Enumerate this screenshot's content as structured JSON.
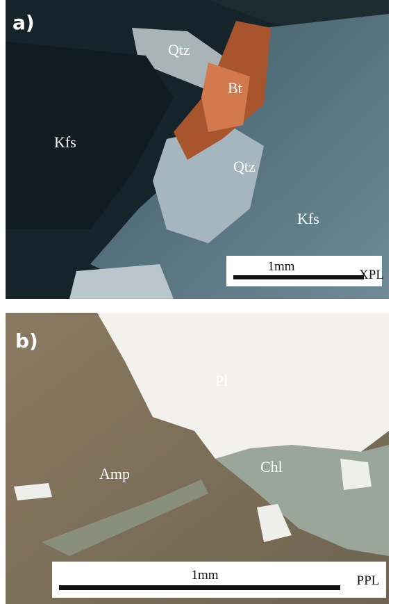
{
  "panels": [
    {
      "label": "a)",
      "annotations": [
        "Qtz",
        "Bt",
        "Kfs",
        "Qtz",
        "Kfs"
      ],
      "scale_bar": {
        "length": "1mm",
        "mode": "XPL"
      }
    },
    {
      "label": "b)",
      "annotations": [
        "Pl",
        "Amp",
        "Chl"
      ],
      "scale_bar": {
        "length": "1mm",
        "mode": "PPL"
      }
    }
  ]
}
